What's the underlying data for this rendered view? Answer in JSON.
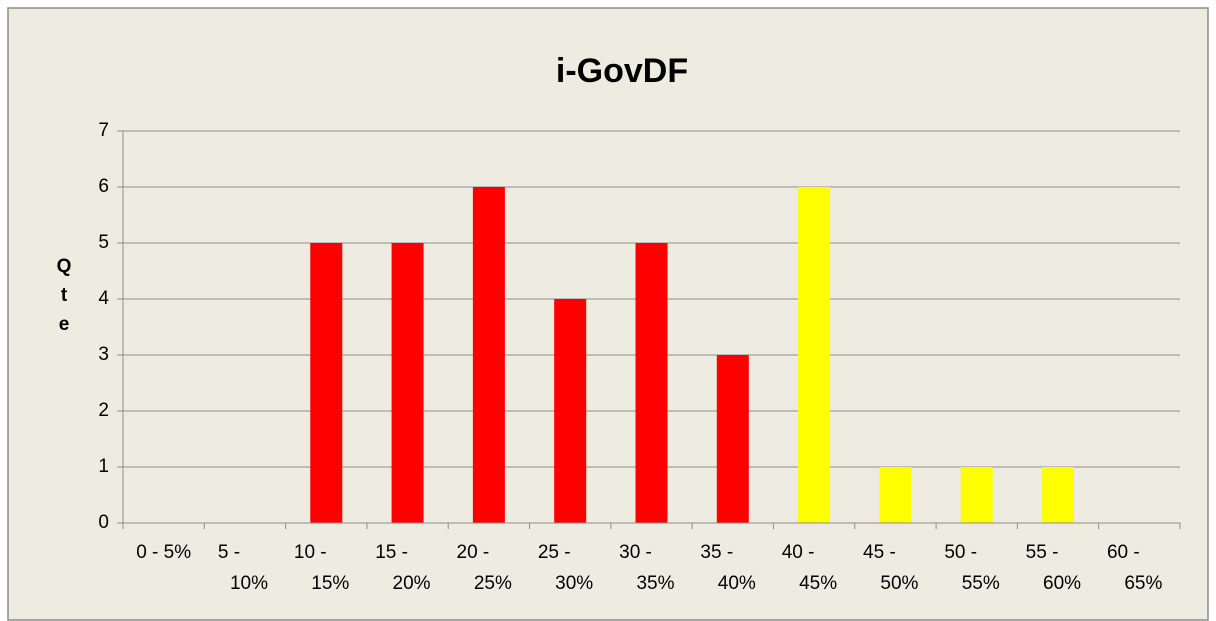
{
  "chart_data": {
    "type": "bar",
    "title": "i-GovDF",
    "y_label": "Qte",
    "categories": [
      "0 - 5%",
      "5 - 10%",
      "10 - 15%",
      "15 - 20%",
      "20 - 25%",
      "25 - 30%",
      "30 - 35%",
      "35 - 40%",
      "40 - 45%",
      "45 - 50%",
      "50 - 55%",
      "55 - 60%",
      "60 - 65%"
    ],
    "values": [
      0,
      0,
      5,
      5,
      6,
      4,
      5,
      3,
      6,
      1,
      1,
      1,
      0
    ],
    "colors": [
      "#ff0000",
      "#ff0000",
      "#ff0000",
      "#ff0000",
      "#ff0000",
      "#ff0000",
      "#ff0000",
      "#ff0000",
      "#ffff00",
      "#ffff00",
      "#ffff00",
      "#ffff00",
      "#ffff00"
    ],
    "ylim": [
      0,
      7
    ],
    "yticks": [
      0,
      1,
      2,
      3,
      4,
      5,
      6,
      7
    ],
    "grid": true
  }
}
